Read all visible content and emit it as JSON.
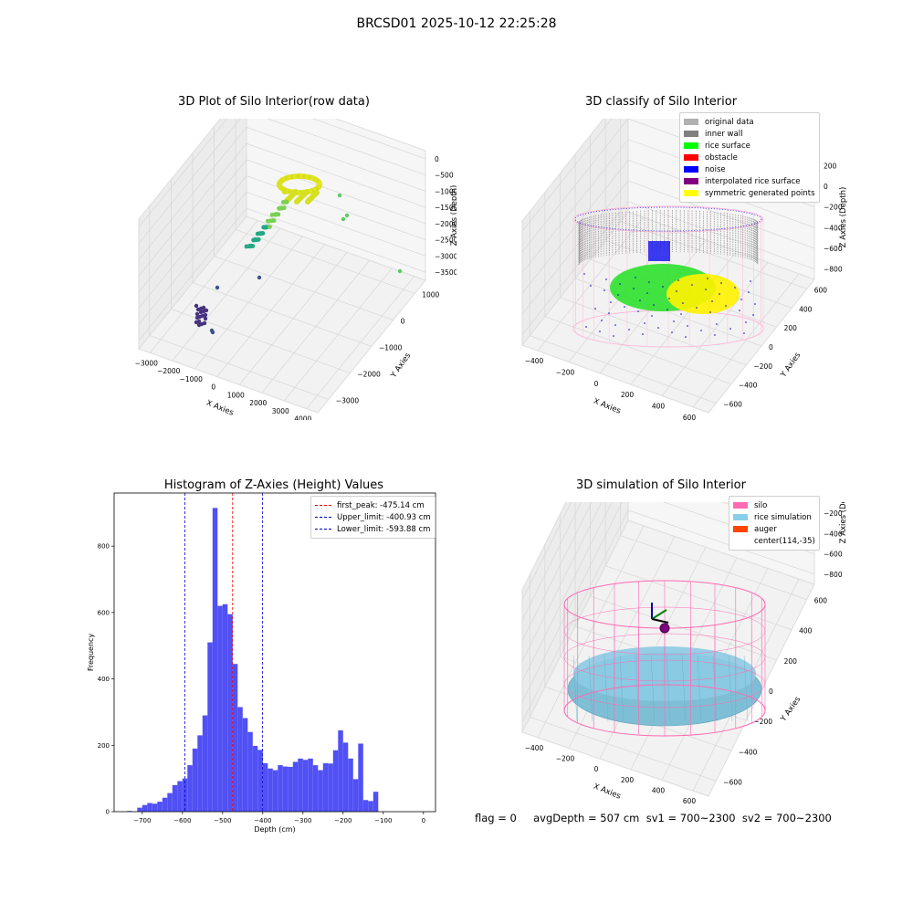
{
  "suptitle": "BRCSD01 2025-10-12 22:25:28",
  "footer": "flag = 0     avgDepth = 507 cm  sv1 = 700~2300  sv2 = 700~2300",
  "colors": {
    "hist_bar": "#5050f5",
    "first_peak_line": "#ff0000",
    "limit_line": "#0000cc",
    "silo": "#ff69b4",
    "rice_simulation": "#87ceeb",
    "auger": "#ff4500",
    "inner_wall": "#808080",
    "rice_surface": "#00ff00",
    "noise": "#0000ff",
    "interpolated": "#800080",
    "symmetric": "#ffff00",
    "original": "#b0b0b0"
  },
  "chart_data": [
    {
      "type": "scatter",
      "title": "3D Plot of Silo Interior(row data)",
      "xlabel": "X Axies",
      "ylabel": "Y Axies",
      "zlabel": "Z Axies (Depth)",
      "x_ticks": [
        "−3000",
        "−2000",
        "−1000",
        "0",
        "1000",
        "2000",
        "3000",
        "4000"
      ],
      "y_ticks": [
        "1000",
        "0",
        "−1000",
        "−2000",
        "−3000"
      ],
      "z_ticks": [
        "0",
        "−500",
        "−1000",
        "−1500",
        "−2000",
        "−2500",
        "−3000",
        "−3500"
      ],
      "grid": true
    },
    {
      "type": "scatter",
      "title": "3D classify of Silo Interior",
      "xlabel": "X Axies",
      "ylabel": "Y Axies",
      "zlabel": "Z Axies (Depth)",
      "x_ticks": [
        "−400",
        "−200",
        "0",
        "200",
        "400",
        "600"
      ],
      "y_ticks": [
        "600",
        "400",
        "200",
        "0",
        "−200",
        "−400",
        "−600"
      ],
      "z_ticks": [
        "200",
        "0",
        "−200",
        "−400",
        "−600",
        "−800"
      ],
      "legend": [
        "original data",
        "inner wall",
        "rice surface",
        "obstacle",
        "noise",
        "interpolated rice surface",
        "symmetric generated points"
      ],
      "legend_colors": [
        "#b0b0b0",
        "#808080",
        "#00ff00",
        "#ff0000",
        "#0000ff",
        "#800080",
        "#ffff00"
      ],
      "legend_position": "top-right",
      "grid": true
    },
    {
      "type": "bar",
      "title": "Histogram of Z-Axies (Height) Values",
      "xlabel": "Depth (cm)",
      "ylabel": "Frequency",
      "x_range": [
        -770,
        30
      ],
      "ylim": [
        0,
        960
      ],
      "x_ticks": [
        -700,
        -600,
        -500,
        -400,
        -300,
        -200,
        -100,
        0
      ],
      "x_tick_labels": [
        "−700",
        "−600",
        "−500",
        "−400",
        "−300",
        "−200",
        "−100",
        "0"
      ],
      "y_ticks": [
        0,
        200,
        400,
        600,
        800
      ],
      "bin_width": 12.5,
      "bin_start": -737.5,
      "values": [
        2,
        0,
        12,
        20,
        26,
        24,
        30,
        42,
        56,
        80,
        92,
        100,
        140,
        190,
        230,
        290,
        510,
        915,
        620,
        625,
        595,
        445,
        315,
        282,
        240,
        198,
        186,
        146,
        130,
        125,
        140,
        136,
        135,
        150,
        160,
        156,
        160,
        140,
        125,
        146,
        145,
        185,
        245,
        208,
        160,
        98,
        205,
        35,
        32,
        60
      ],
      "vlines": [
        {
          "x": -475.14,
          "label": "first_peak: -475.14 cm",
          "color": "#ff0000"
        },
        {
          "x": -400.93,
          "label": "Upper_limit: -400.93 cm",
          "color": "#0000cc"
        },
        {
          "x": -593.88,
          "label": "Lower_limit: -593.88 cm",
          "color": "#0000cc"
        }
      ],
      "legend_position": "top-right"
    },
    {
      "type": "scatter",
      "title": "3D simulation of Silo Interior",
      "xlabel": "X Axies",
      "ylabel": "Y Axies",
      "zlabel": "Z Axies (Depth)",
      "x_ticks": [
        "−400",
        "−200",
        "0",
        "200",
        "400",
        "600"
      ],
      "y_ticks": [
        "600",
        "400",
        "200",
        "0",
        "−200",
        "−400",
        "−600"
      ],
      "z_ticks": [
        "400",
        "200",
        "0",
        "−200",
        "−400",
        "−600",
        "−800"
      ],
      "legend": [
        "silo",
        "rice simulation",
        "auger",
        "center(114,-35)"
      ],
      "legend_colors": [
        "#ff69b4",
        "#87ceeb",
        "#ff4500",
        ""
      ],
      "legend_position": "top-right",
      "grid": true
    }
  ]
}
